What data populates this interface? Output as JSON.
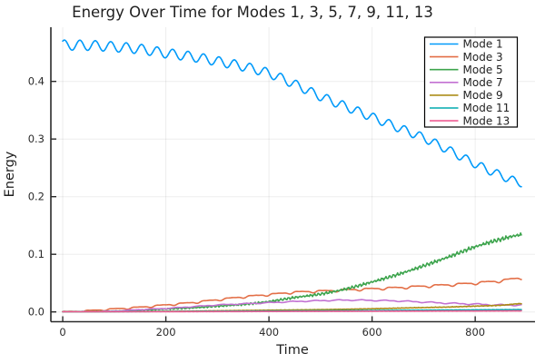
{
  "page": {
    "background": "#FFFFFF"
  },
  "style": {
    "spine_color": "#2A2A2A",
    "grid_color": "#000000",
    "grid_opacity": 0.07,
    "text_color": "#1F1F1F",
    "tick_label_color": "#2B2B2B",
    "legend_border_color": "#000000",
    "legend_bg_color": "#FFFFFF",
    "series_line_width": 1.6
  },
  "chart_data": {
    "type": "line",
    "title": "Energy Over Time for Modes 1, 3, 5, 7, 9, 11, 13",
    "xlabel": "Time",
    "ylabel": "Energy",
    "grid": true,
    "legend_position": "top-right",
    "xlim": [
      -23,
      916
    ],
    "ylim": [
      -0.017,
      0.494
    ],
    "x_ticks": [
      0,
      200,
      400,
      600,
      800
    ],
    "x_tick_labels": [
      "0",
      "200",
      "400",
      "600",
      "800"
    ],
    "y_ticks": [
      0.0,
      0.1,
      0.2,
      0.3,
      0.4
    ],
    "y_tick_labels": [
      "0.0",
      "0.1",
      "0.2",
      "0.3",
      "0.4"
    ],
    "t_end": 890,
    "series": [
      {
        "name": "Mode 1",
        "color": "#009AFA",
        "trend": [
          [
            0,
            0.463
          ],
          [
            50,
            0.4625
          ],
          [
            100,
            0.46
          ],
          [
            150,
            0.456
          ],
          [
            200,
            0.449
          ],
          [
            250,
            0.443
          ],
          [
            300,
            0.435
          ],
          [
            350,
            0.426
          ],
          [
            400,
            0.414
          ],
          [
            450,
            0.395
          ],
          [
            500,
            0.374
          ],
          [
            550,
            0.356
          ],
          [
            600,
            0.338
          ],
          [
            650,
            0.32
          ],
          [
            700,
            0.302
          ],
          [
            750,
            0.28
          ],
          [
            800,
            0.257
          ],
          [
            850,
            0.237
          ],
          [
            890,
            0.224
          ]
        ],
        "osc": {
          "period": 30,
          "amp0": 0.0088,
          "amp1": 0.007,
          "shape": "sine",
          "phase": 0.9
        }
      },
      {
        "name": "Mode 3",
        "color": "#E36F47",
        "trend": [
          [
            0,
            0.0
          ],
          [
            50,
            0.002
          ],
          [
            100,
            0.005
          ],
          [
            150,
            0.008
          ],
          [
            200,
            0.012
          ],
          [
            250,
            0.016
          ],
          [
            300,
            0.021
          ],
          [
            350,
            0.026
          ],
          [
            400,
            0.03
          ],
          [
            450,
            0.034
          ],
          [
            500,
            0.036
          ],
          [
            550,
            0.038
          ],
          [
            600,
            0.04
          ],
          [
            650,
            0.042
          ],
          [
            700,
            0.0445
          ],
          [
            750,
            0.047
          ],
          [
            800,
            0.05
          ],
          [
            850,
            0.054
          ],
          [
            890,
            0.059
          ]
        ],
        "osc": {
          "period": 45,
          "amp0": 0.0018,
          "amp1": 0.0032,
          "shape": "steps",
          "phase": 0.0
        }
      },
      {
        "name": "Mode 5",
        "color": "#3DA44D",
        "trend": [
          [
            0,
            0.0
          ],
          [
            50,
            0.0005
          ],
          [
            100,
            0.001
          ],
          [
            150,
            0.003
          ],
          [
            200,
            0.005
          ],
          [
            250,
            0.007
          ],
          [
            300,
            0.01
          ],
          [
            350,
            0.013
          ],
          [
            400,
            0.018
          ],
          [
            450,
            0.025
          ],
          [
            500,
            0.031
          ],
          [
            550,
            0.04
          ],
          [
            600,
            0.052
          ],
          [
            650,
            0.065
          ],
          [
            700,
            0.08
          ],
          [
            750,
            0.096
          ],
          [
            800,
            0.113
          ],
          [
            850,
            0.126
          ],
          [
            890,
            0.134
          ]
        ],
        "osc": {
          "period": 16,
          "amp0": 0.0006,
          "amp1": 0.0045,
          "shape": "jag",
          "phase": 0.4
        }
      },
      {
        "name": "Mode 7",
        "color": "#C271D2",
        "trend": [
          [
            0,
            0.0
          ],
          [
            50,
            0.0005
          ],
          [
            100,
            0.0015
          ],
          [
            150,
            0.004
          ],
          [
            200,
            0.006
          ],
          [
            250,
            0.009
          ],
          [
            300,
            0.012
          ],
          [
            350,
            0.014
          ],
          [
            400,
            0.016
          ],
          [
            450,
            0.018
          ],
          [
            500,
            0.0195
          ],
          [
            550,
            0.0205
          ],
          [
            600,
            0.02
          ],
          [
            650,
            0.019
          ],
          [
            700,
            0.017
          ],
          [
            750,
            0.015
          ],
          [
            800,
            0.0135
          ],
          [
            850,
            0.012
          ],
          [
            890,
            0.012
          ]
        ],
        "osc": {
          "period": 45,
          "amp0": 0.0006,
          "amp1": 0.0016,
          "shape": "saw",
          "phase": 2.0
        }
      },
      {
        "name": "Mode 9",
        "color": "#AC8D18",
        "trend": [
          [
            0,
            0.0
          ],
          [
            100,
            0.0005
          ],
          [
            200,
            0.001
          ],
          [
            300,
            0.002
          ],
          [
            400,
            0.003
          ],
          [
            500,
            0.004
          ],
          [
            600,
            0.0055
          ],
          [
            700,
            0.0075
          ],
          [
            750,
            0.0085
          ],
          [
            800,
            0.01
          ],
          [
            850,
            0.0115
          ],
          [
            890,
            0.0145
          ]
        ],
        "osc": {
          "period": 30,
          "amp0": 0.0002,
          "amp1": 0.0007,
          "shape": "jitter",
          "phase": 0.7
        }
      },
      {
        "name": "Mode 11",
        "color": "#00AAAE",
        "trend": [
          [
            0,
            0.0
          ],
          [
            100,
            0.0004
          ],
          [
            200,
            0.0008
          ],
          [
            300,
            0.0012
          ],
          [
            400,
            0.0016
          ],
          [
            500,
            0.002
          ],
          [
            600,
            0.0024
          ],
          [
            700,
            0.003
          ],
          [
            800,
            0.0035
          ],
          [
            890,
            0.004
          ]
        ],
        "osc": {
          "period": 30,
          "amp0": 0.00015,
          "amp1": 0.0004,
          "shape": "jitter",
          "phase": 1.9
        }
      },
      {
        "name": "Mode 13",
        "color": "#ED5D92",
        "trend": [
          [
            0,
            0.0
          ],
          [
            200,
            0.0004
          ],
          [
            400,
            0.0008
          ],
          [
            600,
            0.0012
          ],
          [
            800,
            0.0016
          ],
          [
            890,
            0.0018
          ]
        ],
        "osc": {
          "period": 30,
          "amp0": 0.0001,
          "amp1": 0.0003,
          "shape": "jitter",
          "phase": 3.1
        }
      }
    ]
  }
}
